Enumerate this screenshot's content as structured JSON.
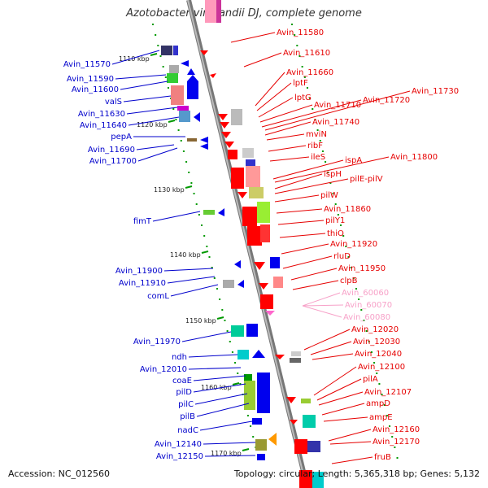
{
  "title": "Azotobacter vinelandii DJ, complete genome",
  "footer": {
    "accession": "Accession: NC_012560",
    "summary": "Topology: circular; Length: 5,365,318 bp; Genes: 5,132"
  },
  "colors": {
    "left_labels": "#0000cc",
    "right_labels": "#e60000",
    "rna_labels": "#f7a1c8",
    "backbone": "#888888",
    "tick": "#009900"
  },
  "ticks": [
    "1110 kbp",
    "1120 kbp",
    "1130 kbp",
    "1140 kbp",
    "1150 kbp",
    "1160 kbp",
    "1170 kbp"
  ],
  "left_genes": [
    "Avin_11570",
    "Avin_11590",
    "Avin_11600",
    "valS",
    "Avin_11630",
    "Avin_11640",
    "pepA",
    "Avin_11690",
    "Avin_11700",
    "fimT",
    "Avin_11900",
    "Avin_11910",
    "comL",
    "Avin_11970",
    "ndh",
    "Avin_12010",
    "coaE",
    "pilD",
    "pilC",
    "pilB",
    "nadC",
    "Avin_12140",
    "Avin_12150"
  ],
  "right_genes": [
    "Avin_11580",
    "Avin_11610",
    "Avin_11660",
    "lptF",
    "lptG",
    "Avin_11710",
    "Avin_11720",
    "Avin_11730",
    "Avin_11740",
    "mviN",
    "ribF",
    "ileS",
    "ispA",
    "Avin_11800",
    "ispH",
    "pilE-pilV",
    "pilW",
    "Avin_11860",
    "pilY1",
    "thiO",
    "Avin_11920",
    "rluD",
    "Avin_11950",
    "clpB",
    "Avin_12020",
    "Avin_12030",
    "Avin_12040",
    "Avin_12100",
    "pilA",
    "Avin_12107",
    "ampD",
    "ampE",
    "Avin_12160",
    "Avin_12170",
    "fruB"
  ],
  "rna_genes": [
    "Avin_60060",
    "Avin_60070",
    "Avin_60080"
  ]
}
